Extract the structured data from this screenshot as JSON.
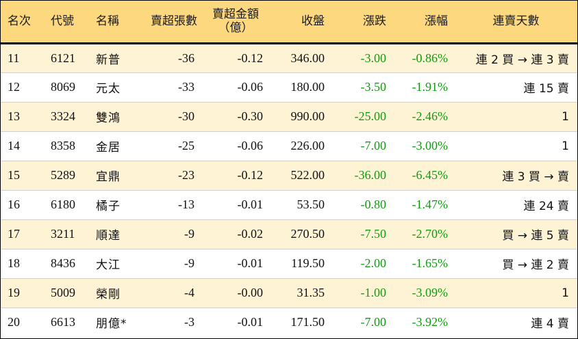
{
  "header": {
    "rank": "名次",
    "code": "代號",
    "name": "名稱",
    "net_sell_lots": "賣超張數",
    "net_sell_amount_line1": "賣超金額",
    "net_sell_amount_line2": "（億）",
    "close": "收盤",
    "change": "漲跌",
    "change_pct": "漲幅",
    "streak": "連賣天數"
  },
  "rows": [
    {
      "rank": "11",
      "code": "6121",
      "name": "新普",
      "lots": "-36",
      "amount": "-0.12",
      "close": "346.00",
      "change": "-3.00",
      "pct": "-0.86%",
      "streak": "連 2 買 → 連 3 賣"
    },
    {
      "rank": "12",
      "code": "8069",
      "name": "元太",
      "lots": "-33",
      "amount": "-0.06",
      "close": "180.00",
      "change": "-3.50",
      "pct": "-1.91%",
      "streak": "連 15 賣"
    },
    {
      "rank": "13",
      "code": "3324",
      "name": "雙鴻",
      "lots": "-30",
      "amount": "-0.30",
      "close": "990.00",
      "change": "-25.00",
      "pct": "-2.46%",
      "streak": "1"
    },
    {
      "rank": "14",
      "code": "8358",
      "name": "金居",
      "lots": "-25",
      "amount": "-0.06",
      "close": "226.00",
      "change": "-7.00",
      "pct": "-3.00%",
      "streak": "1"
    },
    {
      "rank": "15",
      "code": "5289",
      "name": "宜鼎",
      "lots": "-23",
      "amount": "-0.12",
      "close": "522.00",
      "change": "-36.00",
      "pct": "-6.45%",
      "streak": "連 3 買 → 賣"
    },
    {
      "rank": "16",
      "code": "6180",
      "name": "橘子",
      "lots": "-13",
      "amount": "-0.01",
      "close": "53.50",
      "change": "-0.80",
      "pct": "-1.47%",
      "streak": "連 24 賣"
    },
    {
      "rank": "17",
      "code": "3211",
      "name": "順達",
      "lots": "-9",
      "amount": "-0.02",
      "close": "270.50",
      "change": "-7.50",
      "pct": "-2.70%",
      "streak": "買 → 連 5 賣"
    },
    {
      "rank": "18",
      "code": "8436",
      "name": "大江",
      "lots": "-9",
      "amount": "-0.01",
      "close": "119.50",
      "change": "-2.00",
      "pct": "-1.65%",
      "streak": "買 → 連 2 賣"
    },
    {
      "rank": "19",
      "code": "5009",
      "name": "榮剛",
      "lots": "-4",
      "amount": "-0.00",
      "close": "31.35",
      "change": "-1.00",
      "pct": "-3.09%",
      "streak": "1"
    },
    {
      "rank": "20",
      "code": "6613",
      "name": "朋億*",
      "lots": "-3",
      "amount": "-0.01",
      "close": "171.50",
      "change": "-7.00",
      "pct": "-3.92%",
      "streak": "連 4 賣"
    }
  ],
  "colors": {
    "header_bg": "#fdd87e",
    "odd_row_bg": "#fff3d6",
    "negative_change": "#119b11"
  }
}
